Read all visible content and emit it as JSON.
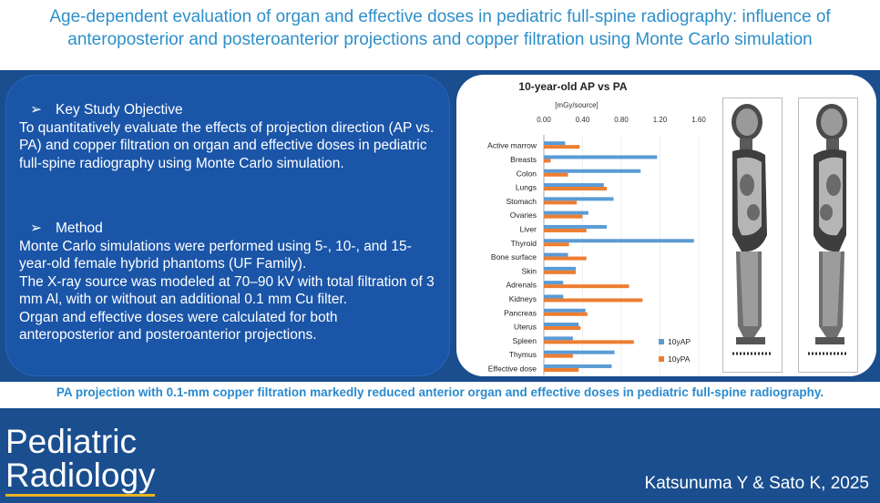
{
  "header": {
    "title_line1": "Age-dependent evaluation of organ and effective doses in pediatric full-spine radiography: influence of",
    "title_line2": "anteroposterior and posteroanterior projections and copper filtration using Monte Carlo simulation"
  },
  "objective": {
    "heading": "Key Study Objective",
    "text": "To quantitatively evaluate the effects of projection direction (AP vs. PA) and copper filtration on organ and effective doses in pediatric full-spine radiography using Monte Carlo simulation."
  },
  "method": {
    "heading": "Method",
    "lines": [
      "Monte Carlo simulations were performed using 5-, 10-, and 15-year-old female hybrid phantoms (UF Family).",
      "The X-ray source was modeled at 70–90 kV with total filtration of 3 mm Al, with or without an additional 0.1 mm Cu filter.",
      "Organ and effective doses were calculated for both anteroposterior and posteroanterior projections."
    ]
  },
  "chart_data": {
    "type": "bar",
    "orientation": "horizontal",
    "title": "10-year-old  AP vs PA",
    "xlabel": "[mGy/source]",
    "xlim": [
      0,
      1.6
    ],
    "xticks": [
      "0.00",
      "0.40",
      "0.80",
      "1.20",
      "1.60"
    ],
    "categories": [
      "Active marrow",
      "Breasts",
      "Colon",
      "Lungs",
      "Stomach",
      "Ovaries",
      "Liver",
      "Thyroid",
      "Bone surface",
      "Skin",
      "Adrenals",
      "Kidneys",
      "Pancreas",
      "Uterus",
      "Spleen",
      "Thymus",
      "Effective dose"
    ],
    "series": [
      {
        "name": "10yAP",
        "color": "#5b9bd5",
        "values": [
          0.22,
          1.17,
          1.0,
          0.62,
          0.72,
          0.46,
          0.65,
          1.55,
          0.25,
          0.33,
          0.2,
          0.2,
          0.43,
          0.36,
          0.3,
          0.73,
          0.7
        ]
      },
      {
        "name": "10yPA",
        "color": "#ed7d31",
        "values": [
          0.37,
          0.07,
          0.25,
          0.65,
          0.34,
          0.4,
          0.44,
          0.26,
          0.44,
          0.33,
          0.88,
          1.02,
          0.45,
          0.38,
          0.93,
          0.3,
          0.36
        ]
      }
    ]
  },
  "conclusion": "PA projection with 0.1-mm copper filtration markedly reduced anterior organ and effective doses in pediatric full-spine radiography.",
  "footer": {
    "journal_line1": "Pediatric",
    "journal_line2": "Radiology",
    "author": "Katsunuma Y & Sato K, 2025"
  }
}
